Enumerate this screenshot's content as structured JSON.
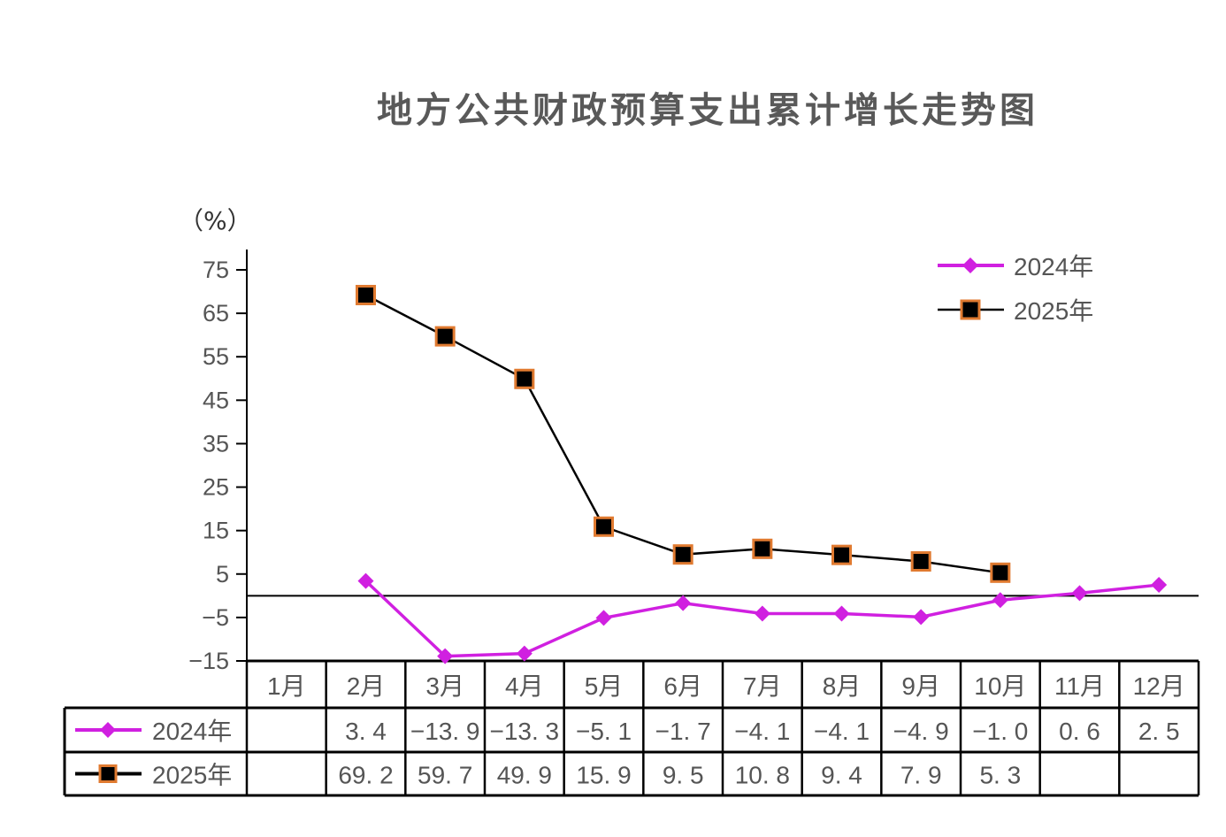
{
  "chart_data": {
    "type": "line",
    "title": "地方公共财政预算支出累计增长走势图",
    "ylabel": "（%）",
    "categories": [
      "1月",
      "2月",
      "3月",
      "4月",
      "5月",
      "6月",
      "7月",
      "8月",
      "9月",
      "10月",
      "11月",
      "12月"
    ],
    "yticks": [
      75,
      65,
      55,
      45,
      35,
      25,
      15,
      5,
      -5,
      -15
    ],
    "ylim": [
      -15,
      80
    ],
    "legend_position": "top-right",
    "data_table": true,
    "series": [
      {
        "name": "2024年",
        "color": "#d020e0",
        "marker": "diamond",
        "values": [
          null,
          3.4,
          -13.9,
          -13.3,
          -5.1,
          -1.7,
          -4.1,
          -4.1,
          -4.9,
          -1.0,
          0.6,
          2.5
        ]
      },
      {
        "name": "2025年",
        "color": "#000000",
        "marker_edge": "#e07a30",
        "marker": "square",
        "values": [
          null,
          69.2,
          59.7,
          49.9,
          15.9,
          9.5,
          10.8,
          9.4,
          7.9,
          5.3,
          null,
          null
        ]
      }
    ]
  }
}
